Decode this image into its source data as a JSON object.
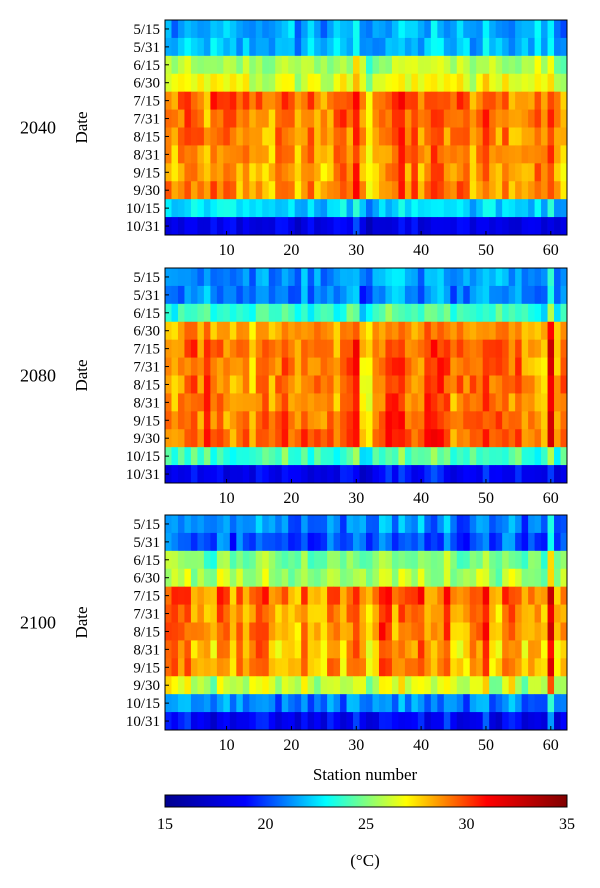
{
  "chart_data": {
    "type": "heatmap",
    "panels": [
      {
        "label": "2040",
        "ylabel": "Date",
        "xlabel": ""
      },
      {
        "label": "2080",
        "ylabel": "Date",
        "xlabel": ""
      },
      {
        "label": "2100",
        "ylabel": "Date",
        "xlabel": "Station number"
      }
    ],
    "y_categories": [
      "5/15",
      "5/31",
      "6/15",
      "6/30",
      "7/15",
      "7/31",
      "8/15",
      "8/31",
      "9/15",
      "9/30",
      "10/15",
      "10/31"
    ],
    "x_ticks": [
      10,
      20,
      30,
      40,
      50,
      60
    ],
    "xlim": [
      1,
      62
    ],
    "stations": 62,
    "row_baselines": {
      "2040": [
        21.5,
        21.8,
        25.5,
        26.5,
        29.2,
        29.0,
        28.8,
        28.6,
        28.3,
        28.6,
        22.3,
        18.2
      ],
      "2080": [
        21.3,
        21.0,
        23.8,
        28.5,
        29.2,
        29.0,
        29.0,
        28.9,
        29.1,
        29.4,
        24.0,
        18.5
      ],
      "2100": [
        21.0,
        20.3,
        24.8,
        25.6,
        29.2,
        28.8,
        28.7,
        28.3,
        28.4,
        26.2,
        21.0,
        18.5
      ]
    },
    "note_hot_stations": [
      30,
      50,
      60
    ],
    "colorbar": {
      "min": 15,
      "max": 35,
      "ticks": [
        15,
        20,
        25,
        30,
        35
      ],
      "unit": "(°C)",
      "colormap": [
        "#00008f",
        "#0000ff",
        "#00ffff",
        "#ffff00",
        "#ff0000",
        "#800000"
      ]
    }
  }
}
